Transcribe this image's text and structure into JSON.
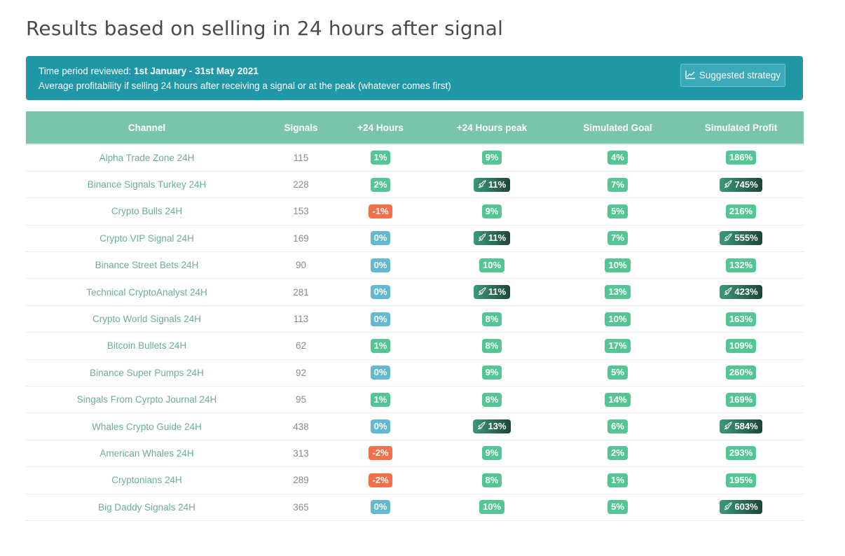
{
  "page": {
    "title": "Results based on selling in 24 hours after signal"
  },
  "info": {
    "period_label": "Time period reviewed:",
    "period_value": "1st January - 31st May 2021",
    "description": "Average profitability if selling 24 hours after receiving a signal or at the peak (whatever comes first)",
    "button_label": "Suggested strategy"
  },
  "table": {
    "headers": [
      "Channel",
      "Signals",
      "+24 Hours",
      "+24 Hours peak",
      "Simulated Goal",
      "Simulated Profit"
    ],
    "rows": [
      {
        "channel": "Alpha Trade Zone 24H",
        "signals": "115",
        "h24": {
          "value": "1%",
          "color": "green",
          "rocket": false
        },
        "peak": {
          "value": "9%",
          "color": "green",
          "rocket": false
        },
        "goal": {
          "value": "4%",
          "color": "green",
          "rocket": false
        },
        "profit": {
          "value": "186%",
          "color": "green",
          "rocket": false
        }
      },
      {
        "channel": "Binance Signals Turkey 24H",
        "signals": "228",
        "h24": {
          "value": "2%",
          "color": "green",
          "rocket": false
        },
        "peak": {
          "value": "11%",
          "color": "rocket",
          "rocket": true
        },
        "goal": {
          "value": "7%",
          "color": "green",
          "rocket": false
        },
        "profit": {
          "value": "745%",
          "color": "rocket",
          "rocket": true
        }
      },
      {
        "channel": "Crypto Bulls 24H",
        "signals": "153",
        "h24": {
          "value": "-1%",
          "color": "red",
          "rocket": false
        },
        "peak": {
          "value": "9%",
          "color": "green",
          "rocket": false
        },
        "goal": {
          "value": "5%",
          "color": "green",
          "rocket": false
        },
        "profit": {
          "value": "216%",
          "color": "green",
          "rocket": false
        }
      },
      {
        "channel": "Crypto VIP Signal 24H",
        "signals": "169",
        "h24": {
          "value": "0%",
          "color": "blue",
          "rocket": false
        },
        "peak": {
          "value": "11%",
          "color": "rocket",
          "rocket": true
        },
        "goal": {
          "value": "7%",
          "color": "green",
          "rocket": false
        },
        "profit": {
          "value": "555%",
          "color": "rocket",
          "rocket": true
        }
      },
      {
        "channel": "Binance Street Bets 24H",
        "signals": "90",
        "h24": {
          "value": "0%",
          "color": "blue",
          "rocket": false
        },
        "peak": {
          "value": "10%",
          "color": "green",
          "rocket": false
        },
        "goal": {
          "value": "10%",
          "color": "green",
          "rocket": false
        },
        "profit": {
          "value": "132%",
          "color": "green",
          "rocket": false
        }
      },
      {
        "channel": "Technical CryptoAnalyst 24H",
        "signals": "281",
        "h24": {
          "value": "0%",
          "color": "blue",
          "rocket": false
        },
        "peak": {
          "value": "11%",
          "color": "rocket",
          "rocket": true
        },
        "goal": {
          "value": "13%",
          "color": "green",
          "rocket": false
        },
        "profit": {
          "value": "423%",
          "color": "rocket",
          "rocket": true
        }
      },
      {
        "channel": "Crypto World Signals 24H",
        "signals": "113",
        "h24": {
          "value": "0%",
          "color": "blue",
          "rocket": false
        },
        "peak": {
          "value": "8%",
          "color": "green",
          "rocket": false
        },
        "goal": {
          "value": "10%",
          "color": "green",
          "rocket": false
        },
        "profit": {
          "value": "163%",
          "color": "green",
          "rocket": false
        }
      },
      {
        "channel": "Bitcoin Bullets 24H",
        "signals": "62",
        "h24": {
          "value": "1%",
          "color": "green",
          "rocket": false
        },
        "peak": {
          "value": "8%",
          "color": "green",
          "rocket": false
        },
        "goal": {
          "value": "17%",
          "color": "green",
          "rocket": false
        },
        "profit": {
          "value": "109%",
          "color": "green",
          "rocket": false
        }
      },
      {
        "channel": "Binance Super Pumps 24H",
        "signals": "92",
        "h24": {
          "value": "0%",
          "color": "blue",
          "rocket": false
        },
        "peak": {
          "value": "9%",
          "color": "green",
          "rocket": false
        },
        "goal": {
          "value": "5%",
          "color": "green",
          "rocket": false
        },
        "profit": {
          "value": "260%",
          "color": "green",
          "rocket": false
        }
      },
      {
        "channel": "Singals From Cyrpto Journal 24H",
        "signals": "95",
        "h24": {
          "value": "1%",
          "color": "green",
          "rocket": false
        },
        "peak": {
          "value": "8%",
          "color": "green",
          "rocket": false
        },
        "goal": {
          "value": "14%",
          "color": "green",
          "rocket": false
        },
        "profit": {
          "value": "169%",
          "color": "green",
          "rocket": false
        }
      },
      {
        "channel": "Whales Crypto Guide 24H",
        "signals": "438",
        "h24": {
          "value": "0%",
          "color": "blue",
          "rocket": false
        },
        "peak": {
          "value": "13%",
          "color": "rocket",
          "rocket": true
        },
        "goal": {
          "value": "6%",
          "color": "green",
          "rocket": false
        },
        "profit": {
          "value": "584%",
          "color": "rocket",
          "rocket": true
        }
      },
      {
        "channel": "American Whales 24H",
        "signals": "313",
        "h24": {
          "value": "-2%",
          "color": "red",
          "rocket": false
        },
        "peak": {
          "value": "9%",
          "color": "green",
          "rocket": false
        },
        "goal": {
          "value": "2%",
          "color": "green",
          "rocket": false
        },
        "profit": {
          "value": "293%",
          "color": "green",
          "rocket": false
        }
      },
      {
        "channel": "Cryptonians 24H",
        "signals": "289",
        "h24": {
          "value": "-2%",
          "color": "red",
          "rocket": false
        },
        "peak": {
          "value": "8%",
          "color": "green",
          "rocket": false
        },
        "goal": {
          "value": "1%",
          "color": "green",
          "rocket": false
        },
        "profit": {
          "value": "195%",
          "color": "green",
          "rocket": false
        }
      },
      {
        "channel": "Big Daddy Signals 24H",
        "signals": "365",
        "h24": {
          "value": "0%",
          "color": "blue",
          "rocket": false
        },
        "peak": {
          "value": "10%",
          "color": "green",
          "rocket": false
        },
        "goal": {
          "value": "5%",
          "color": "green",
          "rocket": false
        },
        "profit": {
          "value": "603%",
          "color": "rocket",
          "rocket": true
        }
      }
    ]
  },
  "colors": {
    "panel": "#2098a8",
    "header": "#7ac4aa",
    "green": "#54c693",
    "red": "#f2704a",
    "blue": "#62b9d1",
    "rocket": "#20443a"
  }
}
